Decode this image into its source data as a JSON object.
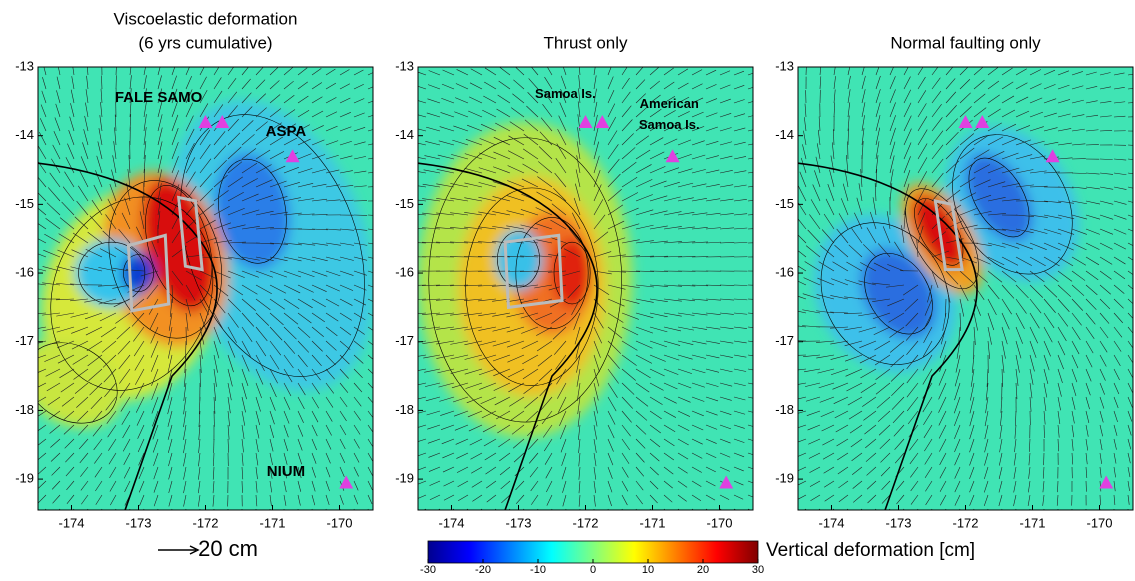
{
  "chart_data": [
    {
      "type": "contour-map",
      "title": "Viscoelastic deformation",
      "subtitle": "(6 yrs cumulative)",
      "xlim": [
        -174.5,
        -169.5
      ],
      "ylim": [
        -19.45,
        -13
      ],
      "xticks": [
        -174,
        -173,
        -172,
        -171,
        -170
      ],
      "yticks": [
        -13,
        -14,
        -15,
        -16,
        -17,
        -18,
        -19
      ],
      "stations": {
        "x": [
          -172,
          -171.75,
          -170.7,
          -169.9
        ],
        "y": [
          -13.8,
          -13.8,
          -14.3,
          -19.05
        ]
      },
      "annotations": [
        {
          "text": "FALE SAMO",
          "x": -172.7,
          "y": -13.45
        },
        {
          "text": "ASPA",
          "x": -170.8,
          "y": -13.95
        },
        {
          "text": "NIUM",
          "x": -170.8,
          "y": -18.9
        }
      ]
    },
    {
      "type": "contour-map",
      "title": "Thrust only",
      "xlim": [
        -174.5,
        -169.5
      ],
      "ylim": [
        -19.45,
        -13
      ],
      "xticks": [
        -174,
        -173,
        -172,
        -171,
        -170
      ],
      "yticks": [
        -13,
        -14,
        -15,
        -16,
        -17,
        -18,
        -19
      ],
      "stations": {
        "x": [
          -172,
          -171.75,
          -170.7,
          -169.9
        ],
        "y": [
          -13.8,
          -13.8,
          -14.3,
          -19.05
        ]
      },
      "annotations": [
        {
          "text": "Samoa Is.",
          "x": -172.3,
          "y": -13.4
        },
        {
          "text": "American",
          "x": -170.75,
          "y": -13.55
        },
        {
          "text": "Samoa Is.",
          "x": -170.75,
          "y": -13.85
        }
      ]
    },
    {
      "type": "contour-map",
      "title": "Normal faulting only",
      "xlim": [
        -174.5,
        -169.5
      ],
      "ylim": [
        -19.45,
        -13
      ],
      "xticks": [
        -174,
        -173,
        -172,
        -171,
        -170
      ],
      "yticks": [
        -13,
        -14,
        -15,
        -16,
        -17,
        -18,
        -19
      ],
      "stations": {
        "x": [
          -172,
          -171.75,
          -170.7,
          -169.9
        ],
        "y": [
          -13.8,
          -13.8,
          -14.3,
          -19.05
        ]
      },
      "annotations": []
    }
  ],
  "colorbar": {
    "label": "Vertical deformation [cm]",
    "lim": [
      -30,
      30
    ],
    "ticks": [
      -30,
      -20,
      -10,
      0,
      10,
      20,
      30
    ]
  },
  "scale_arrow": {
    "label": "20 cm"
  }
}
